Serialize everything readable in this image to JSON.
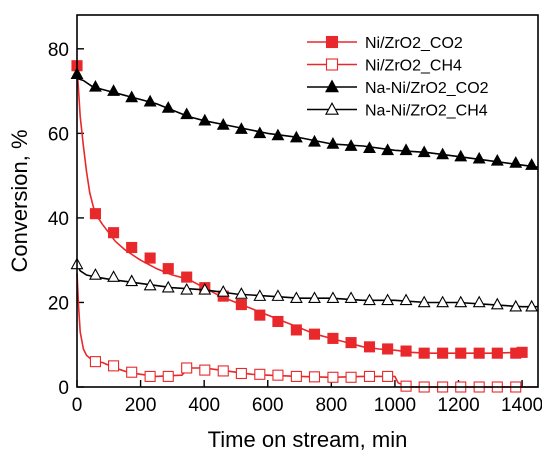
{
  "chart_data": {
    "type": "line",
    "title": "",
    "xlabel": "Time on stream, min",
    "ylabel": "Conversion, %",
    "xlim": [
      0,
      1450
    ],
    "ylim": [
      0,
      88
    ],
    "xticks": [
      0,
      200,
      400,
      600,
      800,
      1000,
      1200,
      1400
    ],
    "yticks": [
      0,
      20,
      40,
      60,
      80
    ],
    "grid": false,
    "legend_position": "top-right",
    "series": [
      {
        "name": "Ni/ZrO2_CO2",
        "color": "#e8282b",
        "marker": "square-filled",
        "curve": [
          [
            0,
            76
          ],
          [
            5,
            70
          ],
          [
            10,
            64
          ],
          [
            20,
            57
          ],
          [
            30,
            51
          ],
          [
            40,
            46
          ],
          [
            50,
            43
          ],
          [
            58,
            41
          ],
          [
            80,
            38.5
          ],
          [
            100,
            36.5
          ],
          [
            120,
            34.5
          ],
          [
            150,
            32.5
          ],
          [
            180,
            31
          ],
          [
            200,
            30
          ],
          [
            250,
            28
          ],
          [
            300,
            26.5
          ],
          [
            350,
            25.5
          ],
          [
            400,
            23.5
          ],
          [
            450,
            21.5
          ],
          [
            500,
            20
          ],
          [
            550,
            18.5
          ],
          [
            600,
            17
          ],
          [
            650,
            15.5
          ],
          [
            700,
            14
          ],
          [
            750,
            12.5
          ],
          [
            800,
            11.5
          ],
          [
            850,
            10.5
          ],
          [
            900,
            9.5
          ],
          [
            950,
            9
          ],
          [
            1000,
            8.7
          ],
          [
            1050,
            8.2
          ],
          [
            1100,
            8
          ],
          [
            1200,
            8
          ],
          [
            1300,
            8
          ],
          [
            1400,
            8.2
          ]
        ],
        "markers": [
          [
            0,
            76
          ],
          [
            58,
            41
          ],
          [
            115,
            36.5
          ],
          [
            172,
            33
          ],
          [
            230,
            30.5
          ],
          [
            287,
            28
          ],
          [
            345,
            26
          ],
          [
            402,
            23.5
          ],
          [
            460,
            21.5
          ],
          [
            517,
            19.5
          ],
          [
            575,
            17
          ],
          [
            632,
            15.5
          ],
          [
            690,
            13.5
          ],
          [
            747,
            12.5
          ],
          [
            805,
            11.5
          ],
          [
            862,
            10.5
          ],
          [
            920,
            9.5
          ],
          [
            977,
            9
          ],
          [
            1035,
            8.5
          ],
          [
            1092,
            8
          ],
          [
            1150,
            8
          ],
          [
            1207,
            8
          ],
          [
            1265,
            8
          ],
          [
            1322,
            8
          ],
          [
            1380,
            8
          ],
          [
            1400,
            8.2
          ]
        ]
      },
      {
        "name": "Ni/ZrO2_CH4",
        "color": "#e8282b",
        "marker": "square-open",
        "curve": [
          [
            0,
            27
          ],
          [
            5,
            19
          ],
          [
            10,
            13
          ],
          [
            20,
            9
          ],
          [
            30,
            7.5
          ],
          [
            50,
            6.2
          ],
          [
            80,
            5.8
          ],
          [
            120,
            4.5
          ],
          [
            160,
            3.5
          ],
          [
            200,
            3
          ],
          [
            250,
            2.5
          ],
          [
            300,
            2.7
          ],
          [
            330,
            2.8
          ],
          [
            350,
            4.5
          ],
          [
            400,
            4.5
          ],
          [
            450,
            4
          ],
          [
            500,
            3.5
          ],
          [
            550,
            3
          ],
          [
            600,
            2.8
          ],
          [
            700,
            2.5
          ],
          [
            800,
            2.3
          ],
          [
            900,
            2.5
          ],
          [
            1000,
            2.5
          ],
          [
            1010,
            1
          ],
          [
            1030,
            0.3
          ],
          [
            1050,
            0
          ],
          [
            1450,
            0
          ]
        ],
        "markers": [
          [
            58,
            6
          ],
          [
            115,
            5
          ],
          [
            172,
            3.5
          ],
          [
            230,
            2.5
          ],
          [
            287,
            2.5
          ],
          [
            345,
            4.5
          ],
          [
            402,
            4
          ],
          [
            460,
            3.8
          ],
          [
            517,
            3.2
          ],
          [
            575,
            3
          ],
          [
            632,
            2.8
          ],
          [
            690,
            2.5
          ],
          [
            747,
            2.4
          ],
          [
            805,
            2.3
          ],
          [
            862,
            2.3
          ],
          [
            920,
            2.5
          ],
          [
            977,
            2.5
          ],
          [
            1035,
            0.2
          ],
          [
            1092,
            0
          ],
          [
            1150,
            0
          ],
          [
            1207,
            0
          ],
          [
            1265,
            0
          ],
          [
            1322,
            0
          ],
          [
            1380,
            0
          ]
        ]
      },
      {
        "name": "Na-Ni/ZrO2_CO2",
        "color": "#000000",
        "marker": "triangle-filled",
        "curve": [
          [
            0,
            73
          ],
          [
            20,
            72.5
          ],
          [
            50,
            71
          ],
          [
            100,
            70
          ],
          [
            150,
            69
          ],
          [
            200,
            68
          ],
          [
            250,
            67
          ],
          [
            300,
            65.5
          ],
          [
            350,
            64
          ],
          [
            400,
            63
          ],
          [
            500,
            61.5
          ],
          [
            600,
            60
          ],
          [
            700,
            59
          ],
          [
            800,
            57.5
          ],
          [
            900,
            57
          ],
          [
            1000,
            56
          ],
          [
            1100,
            55.5
          ],
          [
            1200,
            54.5
          ],
          [
            1300,
            53.5
          ],
          [
            1400,
            52.5
          ],
          [
            1450,
            52
          ]
        ],
        "markers": [
          [
            0,
            74
          ],
          [
            58,
            71
          ],
          [
            115,
            70
          ],
          [
            172,
            68.5
          ],
          [
            230,
            67.5
          ],
          [
            287,
            66
          ],
          [
            345,
            64.5
          ],
          [
            402,
            63
          ],
          [
            460,
            62
          ],
          [
            517,
            61
          ],
          [
            575,
            60
          ],
          [
            632,
            59.5
          ],
          [
            690,
            59
          ],
          [
            747,
            58
          ],
          [
            805,
            57.5
          ],
          [
            862,
            57
          ],
          [
            920,
            56.5
          ],
          [
            977,
            56
          ],
          [
            1035,
            56
          ],
          [
            1092,
            55.5
          ],
          [
            1150,
            55
          ],
          [
            1207,
            54.5
          ],
          [
            1265,
            54
          ],
          [
            1322,
            53.5
          ],
          [
            1380,
            53
          ],
          [
            1430,
            52.5
          ]
        ]
      },
      {
        "name": "Na-Ni/ZrO2_CH4",
        "color": "#000000",
        "marker": "triangle-open",
        "curve": [
          [
            0,
            29
          ],
          [
            10,
            27.5
          ],
          [
            30,
            26.5
          ],
          [
            60,
            26
          ],
          [
            100,
            25.5
          ],
          [
            150,
            25
          ],
          [
            200,
            24.5
          ],
          [
            300,
            23.5
          ],
          [
            400,
            23
          ],
          [
            500,
            22
          ],
          [
            600,
            21.5
          ],
          [
            700,
            21
          ],
          [
            800,
            21
          ],
          [
            900,
            20.5
          ],
          [
            1000,
            20.5
          ],
          [
            1100,
            20
          ],
          [
            1200,
            20
          ],
          [
            1300,
            19.5
          ],
          [
            1400,
            19
          ],
          [
            1450,
            19
          ]
        ],
        "markers": [
          [
            0,
            29
          ],
          [
            58,
            26.5
          ],
          [
            115,
            26
          ],
          [
            172,
            25
          ],
          [
            230,
            24
          ],
          [
            287,
            23.5
          ],
          [
            345,
            23
          ],
          [
            402,
            23
          ],
          [
            460,
            22.5
          ],
          [
            517,
            22
          ],
          [
            575,
            21.5
          ],
          [
            632,
            21.5
          ],
          [
            690,
            21
          ],
          [
            747,
            21
          ],
          [
            805,
            21
          ],
          [
            862,
            21
          ],
          [
            920,
            20.5
          ],
          [
            977,
            20.5
          ],
          [
            1035,
            20.5
          ],
          [
            1092,
            20
          ],
          [
            1150,
            20
          ],
          [
            1207,
            20
          ],
          [
            1265,
            20
          ],
          [
            1322,
            19.5
          ],
          [
            1380,
            19
          ],
          [
            1430,
            19
          ]
        ]
      }
    ]
  }
}
